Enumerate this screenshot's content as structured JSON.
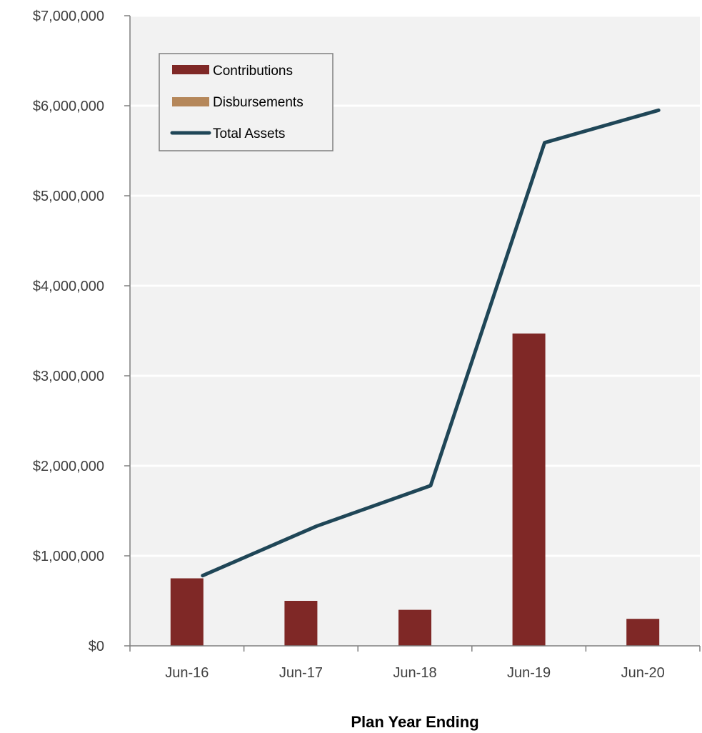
{
  "chart_data": {
    "type": "bar",
    "categories": [
      "Jun-16",
      "Jun-17",
      "Jun-18",
      "Jun-19",
      "Jun-20"
    ],
    "series": [
      {
        "name": "Contributions",
        "kind": "bar",
        "values": [
          750000,
          500000,
          400000,
          3470000,
          300000
        ]
      },
      {
        "name": "Disbursements",
        "kind": "bar",
        "values": [
          0,
          0,
          0,
          0,
          0
        ]
      },
      {
        "name": "Total Assets",
        "kind": "line",
        "values": [
          780000,
          1330000,
          1780000,
          5590000,
          5950000
        ]
      }
    ],
    "title": "",
    "xlabel": "Plan Year Ending",
    "ylabel": "",
    "ylim": [
      0,
      7000000
    ],
    "yticks": [
      0,
      1000000,
      2000000,
      3000000,
      4000000,
      5000000,
      6000000,
      7000000
    ],
    "ytick_labels": [
      "$0",
      "$1,000,000",
      "$2,000,000",
      "$3,000,000",
      "$4,000,000",
      "$5,000,000",
      "$6,000,000",
      "$7,000,000"
    ],
    "grid": "horizontal",
    "legend_position": "top-left",
    "colors": {
      "Contributions": "#7f2826",
      "Disbursements": "#b5875a",
      "Total Assets": "#1f4657",
      "plot_background": "#f2f2f2"
    }
  }
}
